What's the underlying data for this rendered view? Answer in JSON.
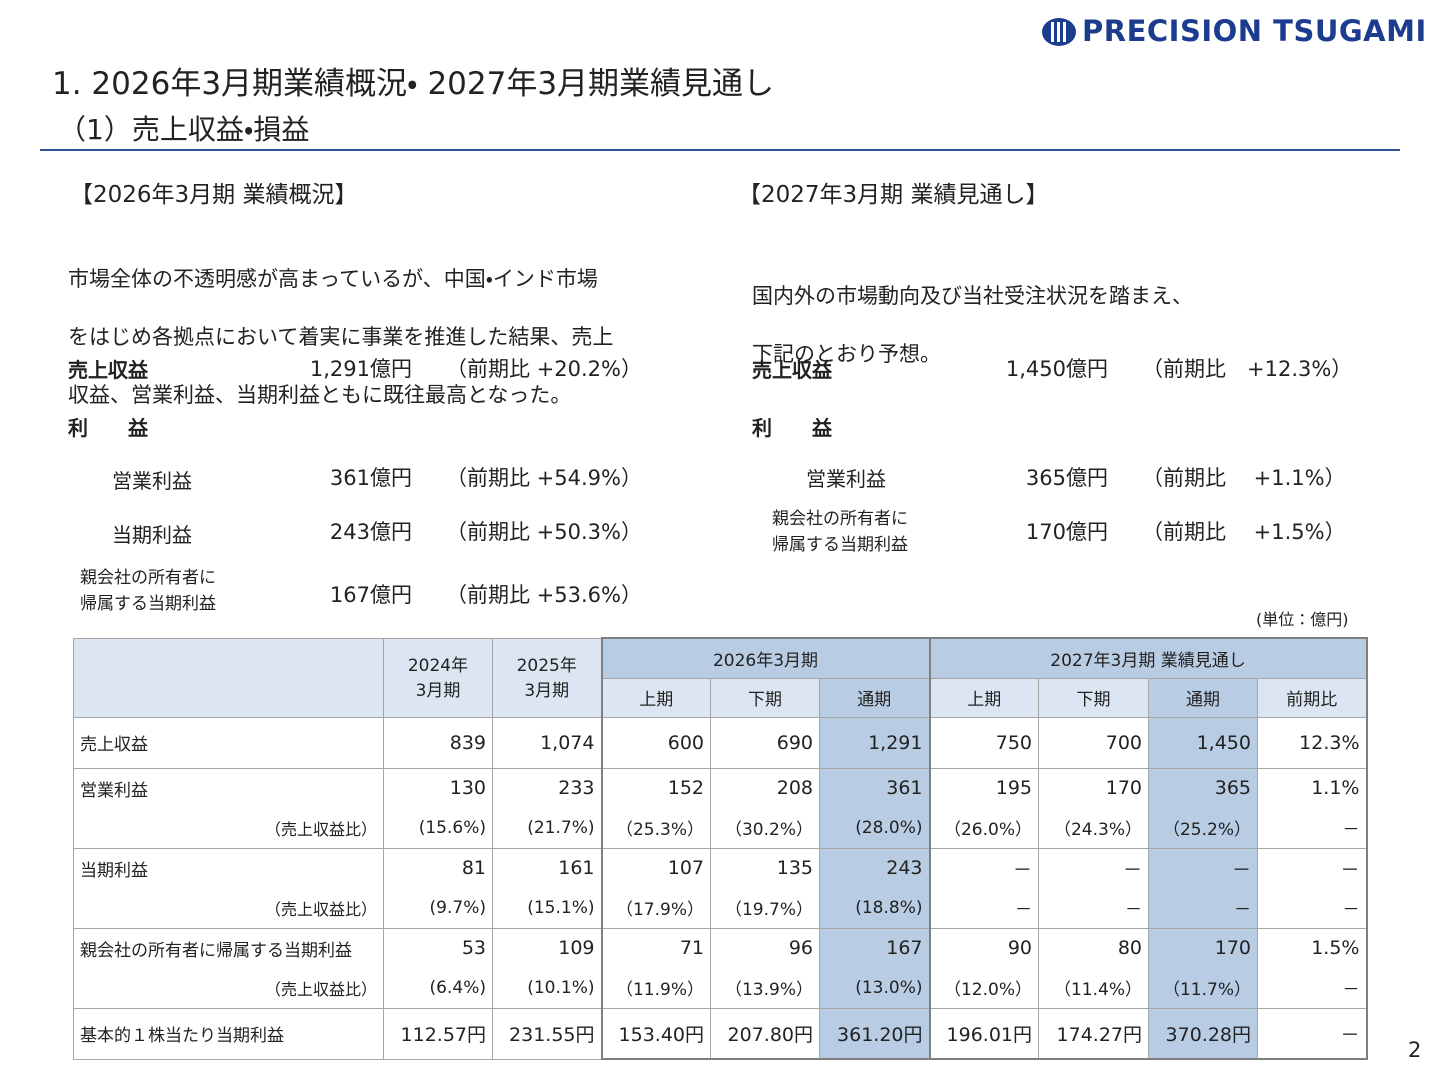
{
  "header": {
    "logo": "PRECISION TSUGAMI",
    "title": "1. 2026年3月期業績概況・ 2027年3月期業績見通し",
    "subtitle": "（1）売上収益・損益"
  },
  "left": {
    "heading": "【2026年3月期 業績概況】",
    "text": [
      "市場全体の不透明感が高まっているが、中国・インド市場",
      "をはじめ各拠点において着実に事業を推進した結果、売上",
      "収益、営業利益、当期利益ともに既往最高となった。"
    ],
    "sales": {
      "label": "売上収益",
      "value": "1,291億円",
      "change": "（前期比 +20.2%）"
    },
    "profit_heading": "利　　益",
    "operating": {
      "label": "営業利益",
      "value": "361億円",
      "change": "（前期比 +54.9%）"
    },
    "net": {
      "label": "当期利益",
      "value": "243億円",
      "change": "（前期比 +50.3%）"
    },
    "parent": {
      "label": "親会社の所有者に\n帰属する当期利益",
      "value": "167億円",
      "change": "（前期比 +53.6%）"
    }
  },
  "right": {
    "heading": "【2027年3月期 業績見通し】",
    "text": [
      "国内外の市場動向及び当社受注状況を踏まえ、",
      "下記のとおり予想。"
    ],
    "sales": {
      "label": "売上収益",
      "value": "1,450億円",
      "change": "（前期比　+12.3%）"
    },
    "profit_heading": "利　　益",
    "operating": {
      "label": "営業利益",
      "value": "365億円",
      "change": "（前期比　 +1.1%）"
    },
    "parent": {
      "label": "親会社の所有者に\n帰属する当期利益",
      "value": "170億円",
      "change": "（前期比　 +1.5%）"
    }
  },
  "unit": "(単位：億円)",
  "table": {
    "years": [
      "2024年\n3月期",
      "2025年\n3月期"
    ],
    "groups": [
      {
        "title": "2026年3月期",
        "subs": [
          "上期",
          "下期",
          "通期"
        ]
      },
      {
        "title": "2027年3月期 業績見通し",
        "subs": [
          "上期",
          "下期",
          "通期",
          "前期比"
        ]
      }
    ],
    "rows": [
      {
        "label": "売上収益",
        "cells": [
          "839",
          "1,074",
          "600",
          "690",
          "1,291",
          "750",
          "700",
          "1,450",
          "12.3%"
        ]
      },
      {
        "label": "営業利益",
        "cells": [
          "130",
          "233",
          "152",
          "208",
          "361",
          "195",
          "170",
          "365",
          "1.1%"
        ]
      },
      {
        "label": "（売上収益比）",
        "cells": [
          "(15.6%)",
          "(21.7%)",
          "（25.3%）",
          "（30.2%）",
          "(28.0%)",
          "（26.0%）",
          "（24.3%）",
          "（25.2%）",
          "－"
        ]
      },
      {
        "label": "当期利益",
        "cells": [
          "81",
          "161",
          "107",
          "135",
          "243",
          "－",
          "－",
          "－",
          "－"
        ]
      },
      {
        "label": "（売上収益比）",
        "cells": [
          "(9.7%)",
          "(15.1%)",
          "（17.9%）",
          "（19.7%）",
          "(18.8%)",
          "－",
          "－",
          "－",
          "－"
        ]
      },
      {
        "label": "親会社の所有者に帰属する当期利益",
        "cells": [
          "53",
          "109",
          "71",
          "96",
          "167",
          "90",
          "80",
          "170",
          "1.5%"
        ]
      },
      {
        "label": "（売上収益比）",
        "cells": [
          "(6.4%)",
          "(10.1%)",
          "（11.9%）",
          "（13.9%）",
          "(13.0%)",
          "（12.0%）",
          "（11.4%）",
          "（11.7%）",
          "－"
        ]
      },
      {
        "label": "基本的１株当たり当期利益",
        "cells": [
          "112.57円",
          "231.55円",
          "153.40円",
          "207.80円",
          "361.20円",
          "196.01円",
          "174.27円",
          "370.28円",
          "－"
        ]
      }
    ]
  },
  "page_number": "2"
}
